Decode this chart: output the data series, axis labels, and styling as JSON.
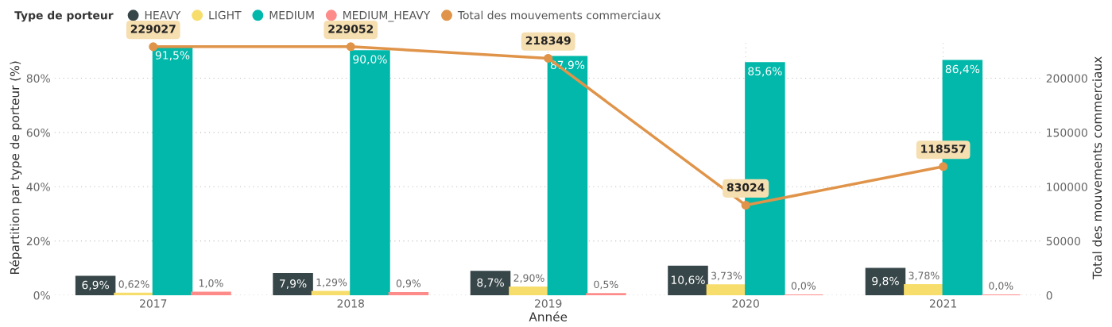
{
  "chart_data": {
    "type": "bar",
    "legend_title": "Type de porteur",
    "legend": "top left",
    "xlabel": "Année",
    "ylabel": "Répartition par type de porteur (%)",
    "y2label": "Total des mouvements commerciaux",
    "categories": [
      "2017",
      "2018",
      "2019",
      "2020",
      "2021"
    ],
    "series": [
      {
        "name": "HEAVY",
        "color": "#374649",
        "values": [
          6.9,
          7.9,
          8.7,
          10.6,
          9.8
        ],
        "value_labels": [
          "6,9%",
          "7,9%",
          "8,7%",
          "10,6%",
          "9,8%"
        ]
      },
      {
        "name": "LIGHT",
        "color": "#f7dd6b",
        "values": [
          0.62,
          1.29,
          2.9,
          3.73,
          3.78
        ],
        "value_labels": [
          "0,62%",
          "1,29%",
          "2,90%",
          "3,73%",
          "3,78%"
        ]
      },
      {
        "name": "MEDIUM",
        "color": "#01b8aa",
        "values": [
          91.5,
          90.0,
          87.9,
          85.6,
          86.4
        ],
        "value_labels": [
          "91,5%",
          "90,0%",
          "87,9%",
          "85,6%",
          "86,4%"
        ]
      },
      {
        "name": "MEDIUM_HEAVY",
        "color": "#fd8b89",
        "values": [
          1.0,
          0.9,
          0.5,
          0.0,
          0.0
        ],
        "value_labels": [
          "1,0%",
          "0,9%",
          "0,5%",
          "0,0%",
          "0,0%"
        ]
      },
      {
        "name": "Total des mouvements commerciaux",
        "type": "line",
        "axis": "y2",
        "color": "#e0944a",
        "marker": "circle",
        "values": [
          229027,
          229052,
          218349,
          83024,
          118557
        ],
        "data_labels": true
      }
    ],
    "ylim": [
      0,
      94
    ],
    "yticks": [
      {
        "value": 0,
        "label": "0%"
      },
      {
        "value": 20,
        "label": "20%"
      },
      {
        "value": 40,
        "label": "40%"
      },
      {
        "value": 60,
        "label": "60%"
      },
      {
        "value": 80,
        "label": "80%"
      }
    ],
    "y2lim": [
      0,
      235000
    ],
    "y2ticks": [
      0,
      50000,
      100000,
      150000,
      200000
    ],
    "grid": true
  }
}
